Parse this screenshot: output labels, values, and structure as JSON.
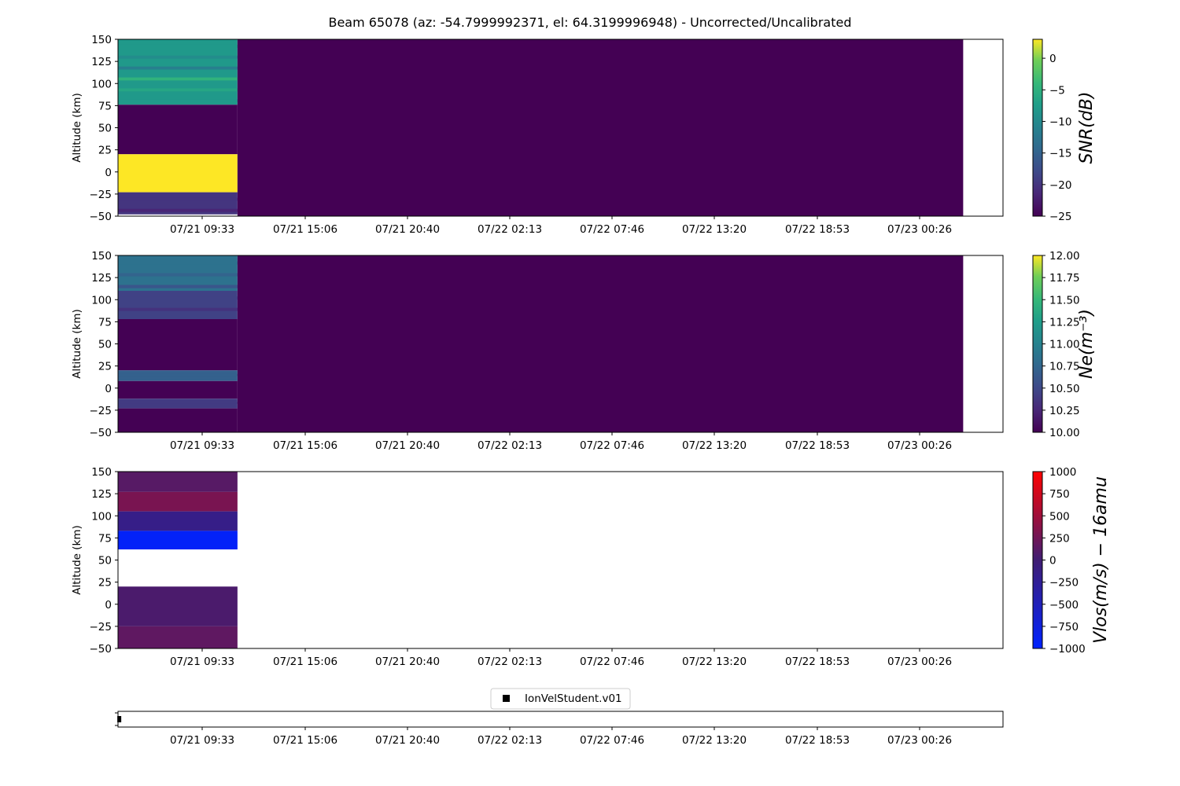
{
  "title": "Beam 65078 (az: -54.7999992371, el: 64.3199996948) - Uncorrected/Uncalibrated",
  "colors": {
    "viridis_low": "#440154",
    "viridis_high": "#fde725",
    "vel_low": "#0022ff",
    "vel_mid": "#401d73",
    "vel_high": "#ff0000",
    "legend_marker": "#000000"
  },
  "chart_data": [
    {
      "type": "heatmap",
      "ylabel": "Altitude (km)",
      "yticks": [
        "150",
        "125",
        "100",
        "75",
        "50",
        "25",
        "0",
        "−25",
        "−50"
      ],
      "ylim": [
        -50,
        150
      ],
      "xticks": [
        "07/21 09:33",
        "07/21 15:06",
        "07/21 20:40",
        "07/22 02:13",
        "07/22 07:46",
        "07/22 13:20",
        "07/22 18:53",
        "07/23 00:26"
      ],
      "colorbar_label": "SNR(dB)",
      "colorbar_ticks": [
        "0",
        "−5",
        "−10",
        "−15",
        "−20",
        "−25"
      ],
      "colormap": "viridis",
      "clim": [
        -25,
        3
      ],
      "cells": [
        {
          "x": [
            0,
            0.135
          ],
          "y": [
            76,
            150
          ],
          "value": -8,
          "stripes": true
        },
        {
          "x": [
            0,
            0.135
          ],
          "y": [
            20,
            76
          ],
          "value": -25
        },
        {
          "x": [
            0,
            0.135
          ],
          "y": [
            -23,
            20
          ],
          "value": 3
        },
        {
          "x": [
            0,
            0.135
          ],
          "y": [
            -48,
            -23
          ],
          "value": -20,
          "stripes": true
        },
        {
          "x": [
            0.135,
            0.955
          ],
          "y": [
            -50,
            150
          ],
          "value": -25
        }
      ]
    },
    {
      "type": "heatmap",
      "ylabel": "Altitude (km)",
      "yticks": [
        "150",
        "125",
        "100",
        "75",
        "50",
        "25",
        "0",
        "−25",
        "−50"
      ],
      "ylim": [
        -50,
        150
      ],
      "xticks": [
        "07/21 09:33",
        "07/21 15:06",
        "07/21 20:40",
        "07/22 02:13",
        "07/22 07:46",
        "07/22 13:20",
        "07/22 18:53",
        "07/23 00:26"
      ],
      "colorbar_label": "Ne(m⁻³)",
      "colorbar_ticks": [
        "12.00",
        "11.75",
        "11.50",
        "11.25",
        "11.00",
        "10.75",
        "10.50",
        "10.25",
        "10.00"
      ],
      "colormap": "viridis",
      "clim": [
        10,
        12
      ],
      "cells": [
        {
          "x": [
            0,
            0.135
          ],
          "y": [
            110,
            150
          ],
          "value": 10.85,
          "stripes": true
        },
        {
          "x": [
            0,
            0.135
          ],
          "y": [
            78,
            110
          ],
          "value": 10.45,
          "stripes": true
        },
        {
          "x": [
            0,
            0.135
          ],
          "y": [
            20,
            78
          ],
          "value": 10.0
        },
        {
          "x": [
            0,
            0.135
          ],
          "y": [
            8,
            20
          ],
          "value": 10.7,
          "stripes": true
        },
        {
          "x": [
            0,
            0.135
          ],
          "y": [
            -12,
            8
          ],
          "value": 10.0
        },
        {
          "x": [
            0,
            0.135
          ],
          "y": [
            -23,
            -12
          ],
          "value": 10.4,
          "stripes": true
        },
        {
          "x": [
            0,
            0.135
          ],
          "y": [
            -50,
            -23
          ],
          "value": 10.0
        },
        {
          "x": [
            0.135,
            0.955
          ],
          "y": [
            -50,
            150
          ],
          "value": 10.0
        }
      ]
    },
    {
      "type": "heatmap",
      "ylabel": "Altitude (km)",
      "yticks": [
        "150",
        "125",
        "100",
        "75",
        "50",
        "25",
        "0",
        "−25",
        "−50"
      ],
      "ylim": [
        -50,
        150
      ],
      "xticks": [
        "07/21 09:33",
        "07/21 15:06",
        "07/21 20:40",
        "07/22 02:13",
        "07/22 07:46",
        "07/22 13:20",
        "07/22 18:53",
        "07/23 00:26"
      ],
      "colorbar_label": "Vlos(m/s) − 16amu",
      "colorbar_ticks": [
        "1000",
        "750",
        "500",
        "250",
        "0",
        "−250",
        "−500",
        "−750",
        "−1000"
      ],
      "colormap": "bwr-dark",
      "clim": [
        -1000,
        1000
      ],
      "cells": [
        {
          "x": [
            0,
            0.135
          ],
          "y": [
            127,
            150
          ],
          "value": 120
        },
        {
          "x": [
            0,
            0.135
          ],
          "y": [
            105,
            127
          ],
          "value": 300
        },
        {
          "x": [
            0,
            0.135
          ],
          "y": [
            83,
            105
          ],
          "value": -150
        },
        {
          "x": [
            0,
            0.135
          ],
          "y": [
            62,
            83
          ],
          "value": -950
        },
        {
          "x": [
            0,
            0.135
          ],
          "y": [
            -25,
            20
          ],
          "value": 60
        },
        {
          "x": [
            0,
            0.135
          ],
          "y": [
            -50,
            -25
          ],
          "value": 160
        }
      ]
    },
    {
      "type": "scatter",
      "legend": [
        "IonVelStudent.v01"
      ],
      "legend_position": "top-center",
      "xticks": [
        "07/21 09:33",
        "07/21 15:06",
        "07/21 20:40",
        "07/22 02:13",
        "07/22 07:46",
        "07/22 13:20",
        "07/22 18:53",
        "07/23 00:26"
      ],
      "points": [
        {
          "x": 0.001,
          "y": 0.5
        }
      ]
    }
  ]
}
